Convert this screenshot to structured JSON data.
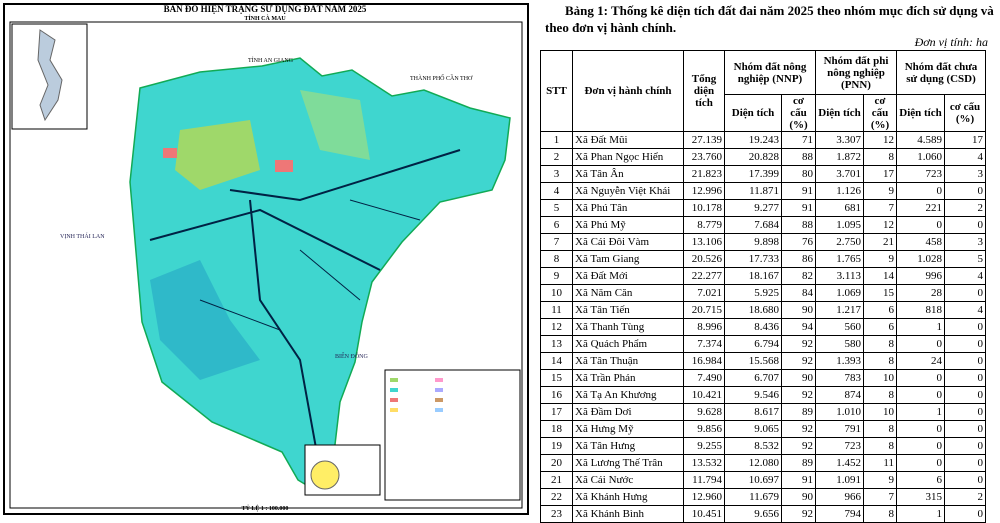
{
  "map": {
    "title": "BẢN ĐỒ HIỆN TRẠNG SỬ DỤNG ĐẤT NĂM 2025",
    "subtitle": "TỈNH CÀ MAU",
    "labels": [
      "TỈNH AN GIANG",
      "THÀNH PHỐ CẦN THƠ",
      "VỊNH THÁI LAN",
      "BIỂN ĐÔNG"
    ],
    "scale": "TỶ LỆ 1 : 100.000"
  },
  "table": {
    "title": "Bảng 1: Thống kê diện tích đất đai năm 2025 theo nhóm mục đích sử dụng và theo đơn vị hành chính.",
    "unit": "Đơn vị tính: ha",
    "headers": [
      "STT",
      "Đơn vị hành chính",
      "Tổng diện tích"
    ],
    "groups": [
      {
        "name": "Nhóm đất nông nghiệp (NNP)",
        "sub": [
          "Diện tích",
          "cơ cấu (%)"
        ]
      },
      {
        "name": "Nhóm đất phi nông nghiệp (PNN)",
        "sub": [
          "Diện tích",
          "cơ cấu (%)"
        ]
      },
      {
        "name": "Nhóm đất chưa sử dụng (CSD)",
        "sub": [
          "Diện tích",
          "cơ cấu (%)"
        ]
      }
    ],
    "rows": [
      [
        "1",
        "Xã Đất Mũi",
        "27.139",
        "19.243",
        "71",
        "3.307",
        "12",
        "4.589",
        "17"
      ],
      [
        "2",
        "Xã Phan Ngọc Hiển",
        "23.760",
        "20.828",
        "88",
        "1.872",
        "8",
        "1.060",
        "4"
      ],
      [
        "3",
        "Xã Tân Ân",
        "21.823",
        "17.399",
        "80",
        "3.701",
        "17",
        "723",
        "3"
      ],
      [
        "4",
        "Xã Nguyễn Việt Khái",
        "12.996",
        "11.871",
        "91",
        "1.126",
        "9",
        "0",
        "0"
      ],
      [
        "5",
        "Xã Phú Tân",
        "10.178",
        "9.277",
        "91",
        "681",
        "7",
        "221",
        "2"
      ],
      [
        "6",
        "Xã Phú Mỹ",
        "8.779",
        "7.684",
        "88",
        "1.095",
        "12",
        "0",
        "0"
      ],
      [
        "7",
        "Xã Cái Đôi Vàm",
        "13.106",
        "9.898",
        "76",
        "2.750",
        "21",
        "458",
        "3"
      ],
      [
        "8",
        "Xã Tam Giang",
        "20.526",
        "17.733",
        "86",
        "1.765",
        "9",
        "1.028",
        "5"
      ],
      [
        "9",
        "Xã Đất Mới",
        "22.277",
        "18.167",
        "82",
        "3.113",
        "14",
        "996",
        "4"
      ],
      [
        "10",
        "Xã Năm Căn",
        "7.021",
        "5.925",
        "84",
        "1.069",
        "15",
        "28",
        "0"
      ],
      [
        "11",
        "Xã Tân Tiến",
        "20.715",
        "18.680",
        "90",
        "1.217",
        "6",
        "818",
        "4"
      ],
      [
        "12",
        "Xã Thanh Tùng",
        "8.996",
        "8.436",
        "94",
        "560",
        "6",
        "1",
        "0"
      ],
      [
        "13",
        "Xã Quách Phẩm",
        "7.374",
        "6.794",
        "92",
        "580",
        "8",
        "0",
        "0"
      ],
      [
        "14",
        "Xã Tân Thuận",
        "16.984",
        "15.568",
        "92",
        "1.393",
        "8",
        "24",
        "0"
      ],
      [
        "15",
        "Xã Trần Phán",
        "7.490",
        "6.707",
        "90",
        "783",
        "10",
        "0",
        "0"
      ],
      [
        "16",
        "Xã Tạ An Khương",
        "10.421",
        "9.546",
        "92",
        "874",
        "8",
        "0",
        "0"
      ],
      [
        "17",
        "Xã Đầm Dơi",
        "9.628",
        "8.617",
        "89",
        "1.010",
        "10",
        "1",
        "0"
      ],
      [
        "18",
        "Xã Hưng Mỹ",
        "9.856",
        "9.065",
        "92",
        "791",
        "8",
        "0",
        "0"
      ],
      [
        "19",
        "Xã Tân Hưng",
        "9.255",
        "8.532",
        "92",
        "723",
        "8",
        "0",
        "0"
      ],
      [
        "20",
        "Xã Lương Thế Trân",
        "13.532",
        "12.080",
        "89",
        "1.452",
        "11",
        "0",
        "0"
      ],
      [
        "21",
        "Xã Cái Nước",
        "11.794",
        "10.697",
        "91",
        "1.091",
        "9",
        "6",
        "0"
      ],
      [
        "22",
        "Xã Khánh Hưng",
        "12.960",
        "11.679",
        "90",
        "966",
        "7",
        "315",
        "2"
      ],
      [
        "23",
        "Xã Khánh Bình",
        "10.451",
        "9.656",
        "92",
        "794",
        "8",
        "1",
        "0"
      ]
    ]
  }
}
